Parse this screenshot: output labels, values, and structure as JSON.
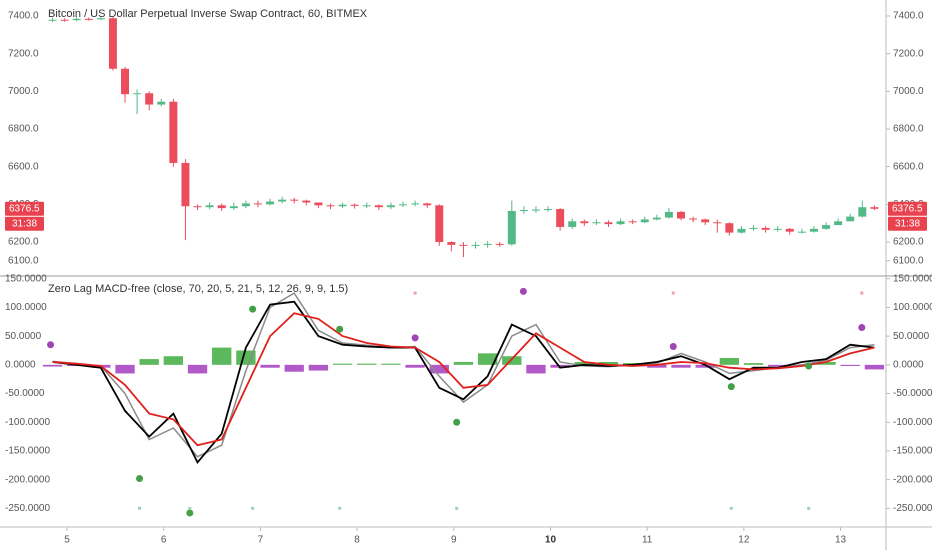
{
  "chart_data": [
    {
      "type": "candlestick",
      "title": "Bitcoin / US Dollar Perpetual Inverse Swap Contract, 60, BITMEX",
      "countdown_label": "31:38",
      "up_color": "#53b987",
      "down_color": "#eb4d5c",
      "last_price_color": "#e8424e",
      "xlim": [
        4.8,
        13.47
      ],
      "ylim": [
        6025,
        7485
      ],
      "yticks": [
        {
          "value": 6100,
          "label": "6100.0"
        },
        {
          "value": 6200,
          "label": "6200.0"
        },
        {
          "value": 6400,
          "label": "6400.0"
        },
        {
          "value": 6600,
          "label": "6600.0"
        },
        {
          "value": 6800,
          "label": "6800.0"
        },
        {
          "value": 7000,
          "label": "7000.0"
        },
        {
          "value": 7200,
          "label": "7200.0"
        },
        {
          "value": 7400,
          "label": "7400.0"
        }
      ],
      "x": [
        4.85,
        4.975,
        5.1,
        5.225,
        5.35,
        5.475,
        5.6,
        5.725,
        5.85,
        5.975,
        6.1,
        6.225,
        6.35,
        6.475,
        6.6,
        6.725,
        6.85,
        6.975,
        7.1,
        7.225,
        7.35,
        7.475,
        7.6,
        7.725,
        7.85,
        7.975,
        8.1,
        8.225,
        8.35,
        8.475,
        8.6,
        8.725,
        8.85,
        8.975,
        9.1,
        9.225,
        9.35,
        9.475,
        9.6,
        9.725,
        9.85,
        9.975,
        10.1,
        10.225,
        10.35,
        10.475,
        10.6,
        10.725,
        10.85,
        10.975,
        11.1,
        11.225,
        11.35,
        11.475,
        11.6,
        11.725,
        11.85,
        11.975,
        12.1,
        12.225,
        12.35,
        12.475,
        12.6,
        12.725,
        12.85,
        12.975,
        13.1,
        13.225,
        13.35
      ],
      "open": [
        7375,
        7380,
        7378,
        7385,
        7382,
        7388,
        7120,
        6985,
        6990,
        6930,
        6945,
        6620,
        6390,
        6385,
        6395,
        6380,
        6390,
        6405,
        6400,
        6415,
        6425,
        6420,
        6410,
        6395,
        6390,
        6398,
        6392,
        6395,
        6385,
        6395,
        6400,
        6405,
        6395,
        6200,
        6185,
        6180,
        6185,
        6190,
        6188,
        6365,
        6370,
        6372,
        6375,
        6280,
        6310,
        6300,
        6305,
        6295,
        6310,
        6305,
        6320,
        6330,
        6360,
        6325,
        6320,
        6305,
        6300,
        6250,
        6270,
        6275,
        6265,
        6270,
        6255,
        6255,
        6270,
        6290,
        6310,
        6335,
        6385
      ],
      "high": [
        7390,
        7388,
        7395,
        7392,
        7400,
        7395,
        7130,
        7010,
        7000,
        6960,
        6960,
        6640,
        6400,
        6410,
        6405,
        6410,
        6420,
        6420,
        6430,
        6440,
        6435,
        6425,
        6410,
        6405,
        6410,
        6405,
        6410,
        6400,
        6410,
        6415,
        6420,
        6410,
        6400,
        6205,
        6200,
        6200,
        6205,
        6200,
        6420,
        6390,
        6390,
        6390,
        6380,
        6325,
        6320,
        6320,
        6315,
        6325,
        6320,
        6335,
        6345,
        6380,
        6365,
        6335,
        6325,
        6320,
        6305,
        6285,
        6290,
        6285,
        6285,
        6275,
        6270,
        6285,
        6305,
        6325,
        6350,
        6420,
        6395
      ],
      "low": [
        7368,
        7370,
        7372,
        7375,
        7378,
        7110,
        6940,
        6880,
        6900,
        6920,
        6600,
        6210,
        6370,
        6375,
        6365,
        6370,
        6380,
        6385,
        6395,
        6405,
        6405,
        6395,
        6380,
        6375,
        6380,
        6378,
        6380,
        6370,
        6375,
        6385,
        6390,
        6380,
        6180,
        6150,
        6120,
        6165,
        6170,
        6175,
        6180,
        6350,
        6355,
        6360,
        6260,
        6270,
        6285,
        6290,
        6280,
        6290,
        6295,
        6300,
        6315,
        6325,
        6315,
        6305,
        6290,
        6250,
        6235,
        6245,
        6260,
        6250,
        6255,
        6240,
        6245,
        6250,
        6265,
        6290,
        6320,
        6330,
        6370
      ],
      "close": [
        7380,
        7378,
        7385,
        7382,
        7388,
        7120,
        6985,
        6990,
        6930,
        6945,
        6620,
        6390,
        6385,
        6395,
        6380,
        6390,
        6405,
        6400,
        6415,
        6425,
        6420,
        6410,
        6395,
        6390,
        6398,
        6392,
        6395,
        6385,
        6395,
        6400,
        6405,
        6395,
        6200,
        6185,
        6180,
        6185,
        6190,
        6188,
        6365,
        6370,
        6372,
        6375,
        6280,
        6310,
        6300,
        6305,
        6295,
        6310,
        6305,
        6320,
        6330,
        6360,
        6325,
        6320,
        6305,
        6300,
        6250,
        6270,
        6275,
        6265,
        6270,
        6255,
        6255,
        6270,
        6290,
        6310,
        6335,
        6385,
        6376.5
      ]
    },
    {
      "type": "line",
      "title": "Zero Lag MACD-free (close, 70, 20, 5, 21, 5, 12, 26, 9, 9, 1.5)",
      "xlim": [
        4.8,
        13.47
      ],
      "xticks": [
        5,
        6,
        7,
        8,
        9,
        10,
        11,
        12,
        13
      ],
      "ylim": [
        -279,
        153
      ],
      "yticks": [
        {
          "value": 150,
          "label": "150.0000"
        },
        {
          "value": 100,
          "label": "100.0000"
        },
        {
          "value": 50,
          "label": "50.0000"
        },
        {
          "value": 0,
          "label": "0.0000"
        },
        {
          "value": -50,
          "label": "-50.0000"
        },
        {
          "value": -100,
          "label": "-100.0000"
        },
        {
          "value": -150,
          "label": "-150.0000"
        },
        {
          "value": -200,
          "label": "-200.0000"
        },
        {
          "value": -250,
          "label": "-250.0000"
        }
      ],
      "x": [
        4.85,
        5.1,
        5.35,
        5.6,
        5.85,
        6.1,
        6.35,
        6.6,
        6.85,
        7.1,
        7.35,
        7.6,
        7.85,
        8.1,
        8.35,
        8.6,
        8.85,
        9.1,
        9.35,
        9.6,
        9.85,
        10.1,
        10.35,
        10.6,
        10.85,
        11.1,
        11.35,
        11.6,
        11.85,
        12.1,
        12.35,
        12.6,
        12.85,
        13.1,
        13.35
      ],
      "histogram": {
        "positive_color": "#5cb85c",
        "negative_color": "#b259c9",
        "values": [
          -3,
          -2,
          -5,
          -15,
          10,
          15,
          -15,
          30,
          25,
          -5,
          -12,
          -10,
          2,
          2,
          2,
          -5,
          -15,
          5,
          20,
          15,
          -15,
          -5,
          5,
          5,
          3,
          -5,
          -5,
          -5,
          12,
          3,
          -3,
          -3,
          5,
          -2,
          -8
        ]
      },
      "series": [
        {
          "color": "#8a8a8a",
          "values": [
            6,
            2,
            -2,
            -50,
            -130,
            -110,
            -160,
            -140,
            -10,
            100,
            125,
            60,
            38,
            34,
            30,
            32,
            -20,
            -65,
            -35,
            50,
            70,
            5,
            -2,
            -3,
            0,
            3,
            20,
            5,
            -15,
            -10,
            -5,
            0,
            8,
            30,
            35
          ]
        },
        {
          "color": "#000000",
          "values": [
            5,
            0,
            -5,
            -80,
            -125,
            -85,
            -170,
            -120,
            30,
            105,
            110,
            50,
            35,
            32,
            30,
            30,
            -40,
            -60,
            -20,
            70,
            50,
            -5,
            0,
            -2,
            0,
            5,
            15,
            0,
            -25,
            -5,
            -5,
            5,
            10,
            35,
            30
          ]
        },
        {
          "color": "#e0201b",
          "values": [
            5,
            2,
            -2,
            -35,
            -85,
            -95,
            -140,
            -130,
            -40,
            50,
            90,
            80,
            50,
            38,
            32,
            30,
            5,
            -40,
            -35,
            10,
            55,
            30,
            5,
            0,
            -2,
            0,
            5,
            3,
            -5,
            -8,
            -6,
            -2,
            5,
            20,
            30
          ]
        }
      ],
      "dots": [
        {
          "color": "#a046b4",
          "x": [
            4.83,
            8.6,
            9.72,
            11.27,
            13.22
          ],
          "values": [
            35,
            47,
            128,
            32,
            65
          ]
        },
        {
          "color": "#43a047",
          "x": [
            5.75,
            6.27,
            6.92,
            7.82,
            9.03,
            11.87,
            12.67
          ],
          "values": [
            -198,
            -258,
            97,
            62,
            -100,
            -38,
            -2
          ]
        }
      ],
      "squares": [
        {
          "color": "#f2a0a8",
          "x": [
            8.6,
            11.27,
            13.22
          ],
          "values": [
            125,
            125,
            125
          ]
        },
        {
          "color": "#9fd3b0",
          "x": [
            5.75,
            6.27,
            6.92,
            7.82,
            9.03,
            11.87,
            12.67
          ],
          "values": [
            -250,
            -250,
            -250,
            -250,
            -250,
            -250,
            -250
          ]
        }
      ]
    }
  ]
}
